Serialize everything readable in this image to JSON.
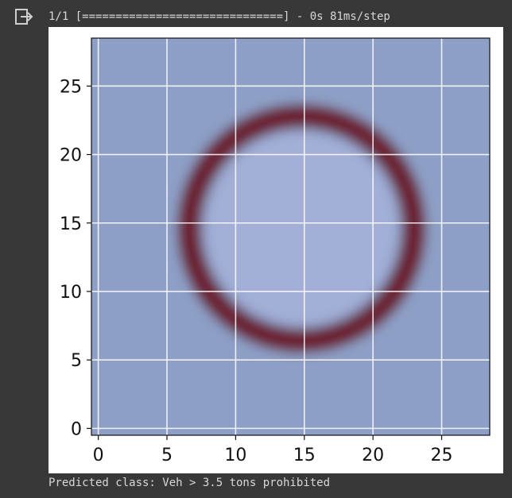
{
  "output": {
    "progress_line": "1/1 [==============================] - 0s 81ms/step",
    "prediction_line": "Predicted class: Veh > 3.5 tons prohibited"
  },
  "icons": {
    "output_gutter": "output-arrow-icon"
  },
  "chart_data": {
    "type": "heatmap",
    "title": "",
    "xlabel": "",
    "ylabel": "",
    "x_ticks": [
      0,
      5,
      10,
      15,
      20,
      25
    ],
    "y_ticks": [
      0,
      5,
      10,
      15,
      20,
      25
    ],
    "xlim": [
      -0.5,
      28.5
    ],
    "ylim": [
      28.5,
      -0.5
    ],
    "grid": true,
    "image_size": [
      29,
      29
    ],
    "colors": {
      "background": "#8d9fc6",
      "ring": "#6a2432",
      "bar": "#14192a",
      "top_band": "#5e6c86",
      "bottom_band": "#50605d"
    }
  }
}
